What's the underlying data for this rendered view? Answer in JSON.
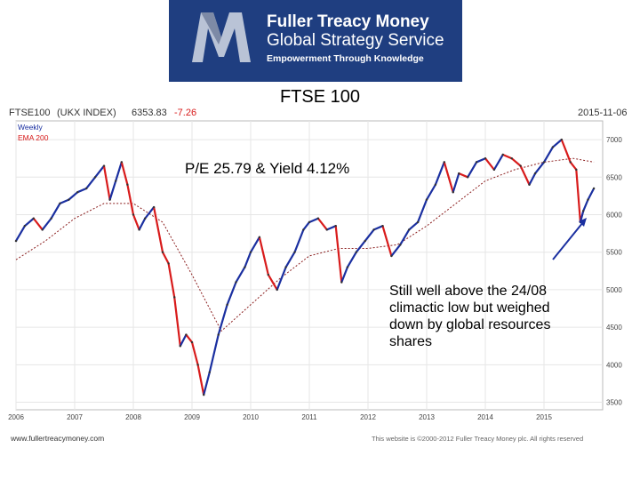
{
  "banner": {
    "brand_line1": "Fuller Treacy Money",
    "brand_line2": "Global Strategy Service",
    "tagline": "Empowerment Through Knowledge",
    "bg_color": "#1f3e80"
  },
  "slide_title": "FTSE 100",
  "pe_text": "P/E 25.79 & Yield 4.12%",
  "annotation": [
    "Still well above the 24/08",
    "climactic low but weighed",
    "down by global resources",
    "shares"
  ],
  "chart_data": {
    "type": "line",
    "header_label": "FTSE100",
    "header_index": "(UKX INDEX)",
    "header_price": "6353.83",
    "header_change": "-7.26",
    "header_date": "2015-11-06",
    "legend": [
      "Weekly",
      "EMA 200"
    ],
    "website": "www.fullertreacymoney.com",
    "copyright": "This website is ©2000-2012 Fuller Treacy Money plc. All rights reserved",
    "x_ticks": [
      "2006",
      "2007",
      "2008",
      "2009",
      "2010",
      "2011",
      "2012",
      "2013",
      "2014",
      "2015"
    ],
    "y_ticks": [
      3500,
      4000,
      4500,
      5000,
      5500,
      6000,
      6500,
      7000
    ],
    "ylim": [
      3400,
      7250
    ],
    "xlim": [
      2006.0,
      2016.0
    ],
    "colors": {
      "up": "#1a2fa0",
      "down": "#d81b1b",
      "ema": "#8b1e1e",
      "change": "#d81b1b",
      "arrow": "#1a2fa0"
    },
    "series": [
      {
        "name": "Weekly",
        "x": [
          2006.0,
          2006.15,
          2006.3,
          2006.45,
          2006.6,
          2006.75,
          2006.9,
          2007.05,
          2007.2,
          2007.35,
          2007.5,
          2007.6,
          2007.7,
          2007.8,
          2007.9,
          2008.0,
          2008.1,
          2008.2,
          2008.35,
          2008.5,
          2008.6,
          2008.7,
          2008.8,
          2008.9,
          2009.0,
          2009.1,
          2009.2,
          2009.3,
          2009.45,
          2009.6,
          2009.75,
          2009.9,
          2010.0,
          2010.15,
          2010.3,
          2010.45,
          2010.6,
          2010.75,
          2010.9,
          2011.0,
          2011.15,
          2011.3,
          2011.45,
          2011.55,
          2011.65,
          2011.8,
          2011.95,
          2012.1,
          2012.25,
          2012.4,
          2012.55,
          2012.7,
          2012.85,
          2013.0,
          2013.15,
          2013.3,
          2013.45,
          2013.55,
          2013.7,
          2013.85,
          2014.0,
          2014.15,
          2014.3,
          2014.45,
          2014.6,
          2014.75,
          2014.85,
          2015.0,
          2015.15,
          2015.3,
          2015.45,
          2015.55,
          2015.62,
          2015.67,
          2015.75,
          2015.85
        ],
        "values": [
          5650,
          5850,
          5950,
          5800,
          5950,
          6150,
          6200,
          6300,
          6350,
          6500,
          6650,
          6200,
          6450,
          6700,
          6400,
          6000,
          5800,
          5950,
          6100,
          5500,
          5350,
          4900,
          4250,
          4400,
          4300,
          4000,
          3600,
          3900,
          4400,
          4800,
          5100,
          5300,
          5500,
          5700,
          5200,
          5000,
          5300,
          5500,
          5800,
          5900,
          5950,
          5800,
          5850,
          5100,
          5300,
          5500,
          5650,
          5800,
          5850,
          5450,
          5600,
          5800,
          5900,
          6200,
          6400,
          6700,
          6300,
          6550,
          6500,
          6700,
          6750,
          6600,
          6800,
          6750,
          6650,
          6400,
          6550,
          6700,
          6900,
          7000,
          6700,
          6600,
          5900,
          6050,
          6200,
          6350
        ]
      },
      {
        "name": "EMA 200",
        "x": [
          2006.0,
          2006.5,
          2007.0,
          2007.5,
          2008.0,
          2008.5,
          2009.0,
          2009.5,
          2010.0,
          2010.5,
          2011.0,
          2011.5,
          2012.0,
          2012.5,
          2013.0,
          2013.5,
          2014.0,
          2014.5,
          2015.0,
          2015.5,
          2015.85
        ],
        "values": [
          5400,
          5650,
          5950,
          6150,
          6150,
          5900,
          5200,
          4450,
          4800,
          5150,
          5450,
          5550,
          5550,
          5600,
          5850,
          6150,
          6450,
          6600,
          6700,
          6750,
          6700
        ]
      }
    ]
  }
}
